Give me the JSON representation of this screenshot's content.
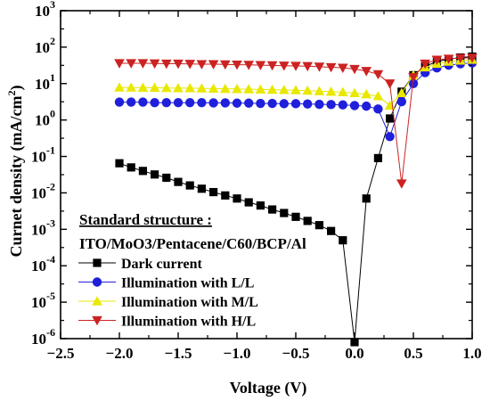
{
  "chart_data": {
    "type": "scatter",
    "xlabel": "Voltage (V)",
    "ylabel_main": "Curnet density (mA/cm",
    "ylabel_sup": "2",
    "ylabel_end": ")",
    "xlim": [
      -2.5,
      1.0
    ],
    "ylim": [
      1e-06,
      1000
    ],
    "yscale": "log",
    "x_ticks": [
      -2.5,
      -2.0,
      -1.5,
      -1.0,
      -0.5,
      0.0,
      0.5,
      1.0
    ],
    "x_tick_labels": [
      "−2.5",
      "−2.0",
      "−1.5",
      "−1.0",
      "−0.5",
      "0.0",
      "0.5",
      "1.0"
    ],
    "y_tick_exponents": [
      "-6",
      "-5",
      "-4",
      "-3",
      "-2",
      "-1",
      "0",
      "1",
      "2",
      "3"
    ],
    "y_tick_base": "10",
    "annotation": {
      "title": "Standard structure :",
      "subtitle": "ITO/MoO3/Pentacene/C60/BCP/Al"
    },
    "legend_placement": "bottom-left",
    "series": [
      {
        "name": "Dark current",
        "color": "#000000",
        "marker": "square",
        "x": [
          -2.0,
          -1.9,
          -1.8,
          -1.7,
          -1.6,
          -1.5,
          -1.4,
          -1.3,
          -1.2,
          -1.1,
          -1.0,
          -0.9,
          -0.8,
          -0.7,
          -0.6,
          -0.5,
          -0.4,
          -0.3,
          -0.2,
          -0.1,
          0.0,
          0.1,
          0.2,
          0.3,
          0.4,
          0.5,
          0.6,
          0.7,
          0.8,
          0.9,
          1.0
        ],
        "y": [
          0.065,
          0.05,
          0.04,
          0.032,
          0.026,
          0.02,
          0.016,
          0.013,
          0.0105,
          0.0085,
          0.007,
          0.0055,
          0.0045,
          0.0035,
          0.0028,
          0.0022,
          0.0017,
          0.0013,
          0.0009,
          0.0005,
          8e-07,
          0.007,
          0.09,
          1.1,
          6,
          17,
          30,
          40,
          47,
          52,
          55
        ]
      },
      {
        "name": "Illumination with L/L",
        "color": "#1f1fdc",
        "marker": "circle",
        "x": [
          -2.0,
          -1.9,
          -1.8,
          -1.7,
          -1.6,
          -1.5,
          -1.4,
          -1.3,
          -1.2,
          -1.1,
          -1.0,
          -0.9,
          -0.8,
          -0.7,
          -0.6,
          -0.5,
          -0.4,
          -0.3,
          -0.2,
          -0.1,
          0.0,
          0.1,
          0.2,
          0.3,
          0.4,
          0.5,
          0.6,
          0.7,
          0.8,
          0.9,
          1.0
        ],
        "y": [
          3.1,
          3.1,
          3.1,
          3.0,
          3.0,
          3.0,
          3.0,
          3.0,
          2.95,
          2.95,
          2.9,
          2.9,
          2.85,
          2.85,
          2.8,
          2.8,
          2.75,
          2.7,
          2.65,
          2.6,
          2.5,
          2.4,
          2.0,
          0.35,
          3.2,
          10,
          20,
          27,
          32,
          35,
          37
        ]
      },
      {
        "name": "Illumination with M/L",
        "color": "#e8e800",
        "marker": "triangle-up",
        "x": [
          -2.0,
          -1.9,
          -1.8,
          -1.7,
          -1.6,
          -1.5,
          -1.4,
          -1.3,
          -1.2,
          -1.1,
          -1.0,
          -0.9,
          -0.8,
          -0.7,
          -0.6,
          -0.5,
          -0.4,
          -0.3,
          -0.2,
          -0.1,
          0.0,
          0.1,
          0.2,
          0.3,
          0.4,
          0.5,
          0.6,
          0.7,
          0.8,
          0.9,
          1.0
        ],
        "y": [
          7.8,
          7.8,
          7.7,
          7.7,
          7.6,
          7.5,
          7.5,
          7.4,
          7.3,
          7.2,
          7.1,
          7.0,
          6.9,
          6.8,
          6.7,
          6.6,
          6.4,
          6.2,
          6.0,
          5.8,
          5.5,
          5.1,
          4.5,
          2.5,
          5.5,
          17,
          28,
          35,
          40,
          43,
          45
        ]
      },
      {
        "name": "Illumination with H/L",
        "color": "#cc2222",
        "marker": "triangle-down",
        "x": [
          -2.0,
          -1.9,
          -1.8,
          -1.7,
          -1.6,
          -1.5,
          -1.4,
          -1.3,
          -1.2,
          -1.1,
          -1.0,
          -0.9,
          -0.8,
          -0.7,
          -0.6,
          -0.5,
          -0.4,
          -0.3,
          -0.2,
          -0.1,
          0.0,
          0.1,
          0.2,
          0.3,
          0.4,
          0.5,
          0.6,
          0.7,
          0.8,
          0.9,
          1.0
        ],
        "y": [
          36,
          36,
          36,
          35.5,
          35,
          35,
          34.5,
          34,
          34,
          33.5,
          33,
          32.5,
          32,
          31.5,
          31,
          30.5,
          30,
          29,
          28,
          27,
          25,
          22,
          18,
          10,
          0.018,
          15,
          35,
          45,
          48,
          50,
          51
        ]
      }
    ]
  }
}
